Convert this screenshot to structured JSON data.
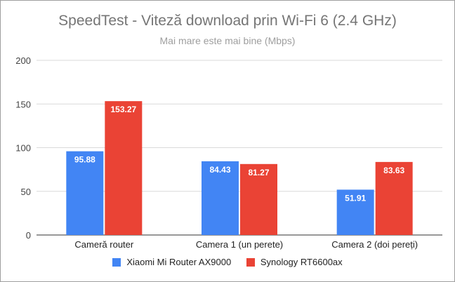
{
  "chart_data": {
    "type": "bar",
    "title": "SpeedTest - Viteză download prin Wi-Fi 6 (2.4 GHz)",
    "subtitle": "Mai mare este mai bine (Mbps)",
    "categories": [
      "Cameră router",
      "Camera 1 (un perete)",
      "Camera 2 (doi pereți)"
    ],
    "series": [
      {
        "name": "Xiaomi Mi Router AX9000",
        "values": [
          95.88,
          84.43,
          51.91
        ],
        "color": "#4285f4"
      },
      {
        "name": "Synology RT6600ax",
        "values": [
          153.27,
          81.27,
          83.63
        ],
        "color": "#ea4335"
      }
    ],
    "ylim": [
      0,
      200
    ],
    "yticks": [
      0,
      50,
      100,
      150,
      200
    ],
    "grid": true,
    "legend_position": "bottom"
  }
}
